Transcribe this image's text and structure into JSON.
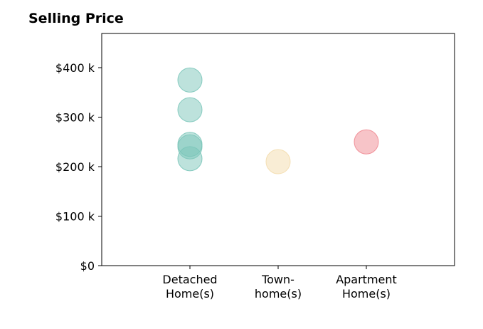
{
  "chart_data": {
    "type": "scatter",
    "title": "Selling Price",
    "xlabel": "",
    "ylabel": "",
    "categories": [
      [
        "Detached",
        "Home(s)"
      ],
      [
        "Town-",
        "home(s)"
      ],
      [
        "Apartment",
        "Home(s)"
      ]
    ],
    "category_colors": [
      "#7cc6ba",
      "#f3dcac",
      "#f08a92"
    ],
    "points": [
      {
        "category": 0,
        "value": 375000
      },
      {
        "category": 0,
        "value": 315000
      },
      {
        "category": 0,
        "value": 245000
      },
      {
        "category": 0,
        "value": 240000
      },
      {
        "category": 0,
        "value": 216000
      },
      {
        "category": 1,
        "value": 210000
      },
      {
        "category": 2,
        "value": 250000
      }
    ],
    "ylim": [
      0,
      470000
    ],
    "yticks": [
      0,
      100000,
      200000,
      300000,
      400000
    ],
    "ytick_labels": [
      "$0",
      "$100 k",
      "$200 k",
      "$300 k",
      "$400 k"
    ],
    "grid": false,
    "marker_alpha": 0.5
  }
}
